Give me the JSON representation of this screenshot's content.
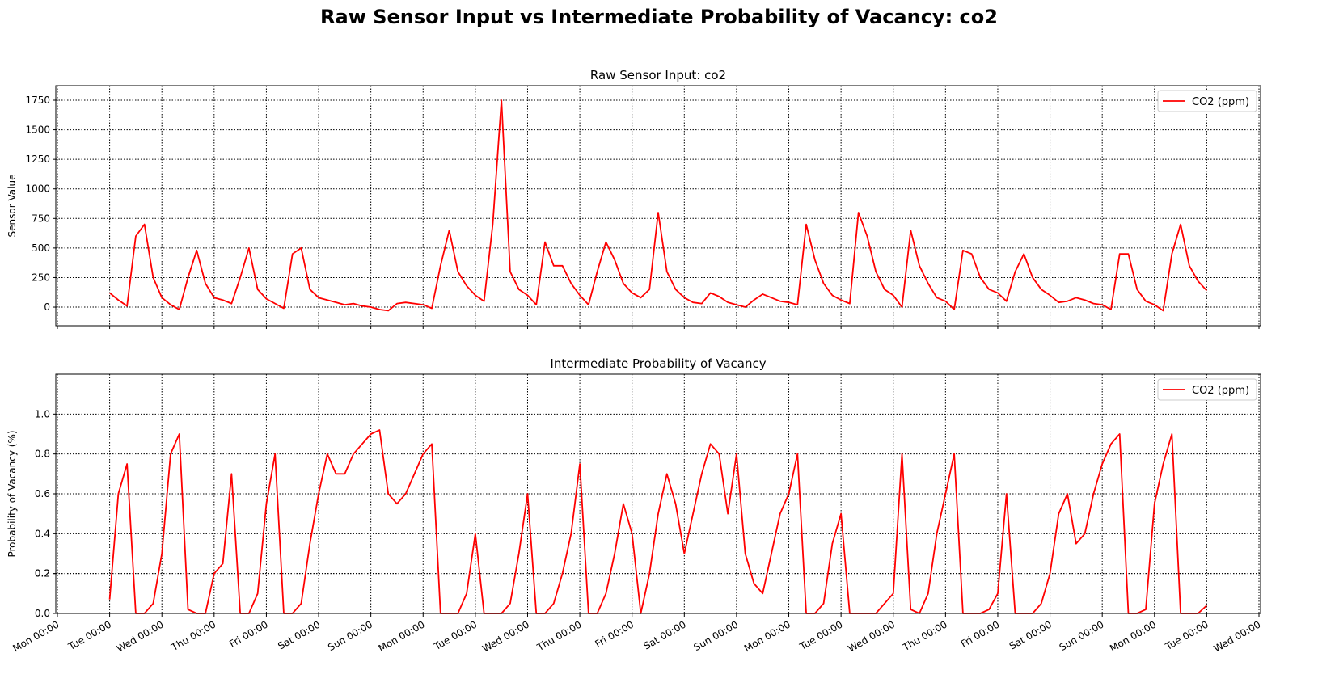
{
  "title": "Raw Sensor Input vs Intermediate Probability of Vacancy: co2",
  "chart_data": [
    {
      "type": "line",
      "title": "Raw Sensor Input: co2",
      "y_label": "Sensor Value",
      "x": [
        24,
        28,
        32,
        36,
        40,
        44,
        48,
        52,
        56,
        60,
        64,
        68,
        72,
        76,
        80,
        84,
        88,
        92,
        96,
        100,
        104,
        108,
        112,
        116,
        120,
        124,
        128,
        132,
        136,
        140,
        144,
        148,
        152,
        156,
        160,
        164,
        168,
        172,
        176,
        180,
        184,
        188,
        192,
        196,
        200,
        204,
        208,
        212,
        216,
        220,
        224,
        228,
        232,
        236,
        240,
        244,
        248,
        252,
        256,
        260,
        264,
        268,
        272,
        276,
        280,
        284,
        288,
        292,
        296,
        300,
        304,
        308,
        312,
        316,
        320,
        324,
        328,
        332,
        336,
        340,
        344,
        348,
        352,
        356,
        360,
        364,
        368,
        372,
        376,
        380,
        384,
        388,
        392,
        396,
        400,
        404,
        408,
        412,
        416,
        420,
        424,
        428,
        432,
        436,
        440,
        444,
        448,
        452,
        456,
        460,
        464,
        468,
        472,
        476,
        480,
        484,
        488,
        492,
        496,
        500,
        504,
        508,
        512,
        516,
        520,
        524,
        528
      ],
      "series": [
        {
          "name": "CO2 (ppm)",
          "color": "#ff0000",
          "values": [
            120,
            60,
            10,
            600,
            700,
            250,
            80,
            20,
            -20,
            250,
            480,
            200,
            80,
            60,
            30,
            250,
            500,
            150,
            70,
            30,
            -10,
            450,
            500,
            150,
            80,
            60,
            40,
            20,
            30,
            10,
            0,
            -20,
            -30,
            30,
            40,
            30,
            20,
            -10,
            350,
            650,
            300,
            180,
            100,
            50,
            700,
            1750,
            300,
            150,
            100,
            20,
            550,
            350,
            350,
            200,
            100,
            20,
            300,
            550,
            400,
            200,
            120,
            80,
            150,
            800,
            300,
            150,
            80,
            40,
            30,
            120,
            90,
            40,
            20,
            0,
            60,
            110,
            80,
            50,
            40,
            20,
            700,
            400,
            200,
            100,
            60,
            30,
            800,
            600,
            300,
            150,
            100,
            0,
            650,
            350,
            200,
            80,
            50,
            -20,
            480,
            450,
            250,
            150,
            120,
            50,
            300,
            450,
            250,
            150,
            100,
            40,
            50,
            80,
            60,
            30,
            20,
            -20,
            450,
            450,
            150,
            50,
            20,
            -30,
            450,
            700,
            350,
            220,
            140
          ]
        }
      ],
      "xlim": [
        -0.74,
        552.74
      ],
      "xticks": [
        0,
        24,
        48,
        72,
        96,
        120,
        144,
        168,
        192,
        216,
        240,
        264,
        288,
        312,
        336,
        360,
        384,
        408,
        432,
        456,
        480,
        504,
        528,
        552
      ],
      "ylim": [
        -157,
        1873
      ],
      "yticks": [
        0,
        250,
        500,
        750,
        1000,
        1250,
        1500,
        1750
      ],
      "grid": true,
      "legend": "upper right"
    },
    {
      "type": "line",
      "title": "Intermediate Probability of Vacancy",
      "y_label": "Probability of Vacancy (%)",
      "x": [
        24,
        28,
        32,
        36,
        40,
        44,
        48,
        52,
        56,
        60,
        64,
        68,
        72,
        76,
        80,
        84,
        88,
        92,
        96,
        100,
        104,
        108,
        112,
        116,
        120,
        124,
        128,
        132,
        136,
        140,
        144,
        148,
        152,
        156,
        160,
        164,
        168,
        172,
        176,
        180,
        184,
        188,
        192,
        196,
        200,
        204,
        208,
        212,
        216,
        220,
        224,
        228,
        232,
        236,
        240,
        244,
        248,
        252,
        256,
        260,
        264,
        268,
        272,
        276,
        280,
        284,
        288,
        292,
        296,
        300,
        304,
        308,
        312,
        316,
        320,
        324,
        328,
        332,
        336,
        340,
        344,
        348,
        352,
        356,
        360,
        364,
        368,
        372,
        376,
        380,
        384,
        388,
        392,
        396,
        400,
        404,
        408,
        412,
        416,
        420,
        424,
        428,
        432,
        436,
        440,
        444,
        448,
        452,
        456,
        460,
        464,
        468,
        472,
        476,
        480,
        484,
        488,
        492,
        496,
        500,
        504,
        508,
        512,
        516,
        520,
        524,
        528
      ],
      "series": [
        {
          "name": "CO2 (ppm)",
          "color": "#ff0000",
          "values": [
            0.07,
            0.6,
            0.75,
            0,
            0,
            0.05,
            0.3,
            0.8,
            0.9,
            0.02,
            0,
            0,
            0.2,
            0.25,
            0.7,
            0,
            0,
            0.1,
            0.55,
            0.8,
            0,
            0,
            0.05,
            0.35,
            0.6,
            0.8,
            0.7,
            0.7,
            0.8,
            0.85,
            0.9,
            0.92,
            0.6,
            0.55,
            0.6,
            0.7,
            0.8,
            0.85,
            0,
            0,
            0,
            0.1,
            0.4,
            0,
            0,
            0,
            0.05,
            0.3,
            0.6,
            0,
            0,
            0.05,
            0.2,
            0.4,
            0.75,
            0,
            0,
            0.1,
            0.3,
            0.55,
            0.4,
            0,
            0.2,
            0.5,
            0.7,
            0.55,
            0.3,
            0.5,
            0.7,
            0.85,
            0.8,
            0.5,
            0.8,
            0.3,
            0.15,
            0.1,
            0.3,
            0.5,
            0.6,
            0.8,
            0,
            0,
            0.05,
            0.35,
            0.5,
            0,
            0,
            0,
            0,
            0.05,
            0.1,
            0.8,
            0.02,
            0,
            0.1,
            0.4,
            0.6,
            0.8,
            0,
            0,
            0,
            0.02,
            0.1,
            0.6,
            0,
            0,
            0,
            0.05,
            0.2,
            0.5,
            0.6,
            0.35,
            0.4,
            0.6,
            0.75,
            0.85,
            0.9,
            0,
            0,
            0.02,
            0.55,
            0.75,
            0.9,
            0,
            0,
            0,
            0.04
          ]
        }
      ],
      "xlim": [
        -0.74,
        552.74
      ],
      "xticks": [
        {
          "value": 0,
          "label": "Mon 00:00"
        },
        {
          "value": 24,
          "label": "Tue 00:00"
        },
        {
          "value": 48,
          "label": "Wed 00:00"
        },
        {
          "value": 72,
          "label": "Thu 00:00"
        },
        {
          "value": 96,
          "label": "Fri 00:00"
        },
        {
          "value": 120,
          "label": "Sat 00:00"
        },
        {
          "value": 144,
          "label": "Sun 00:00"
        },
        {
          "value": 168,
          "label": "Mon 00:00"
        },
        {
          "value": 192,
          "label": "Tue 00:00"
        },
        {
          "value": 216,
          "label": "Wed 00:00"
        },
        {
          "value": 240,
          "label": "Thu 00:00"
        },
        {
          "value": 264,
          "label": "Fri 00:00"
        },
        {
          "value": 288,
          "label": "Sat 00:00"
        },
        {
          "value": 312,
          "label": "Sun 00:00"
        },
        {
          "value": 336,
          "label": "Mon 00:00"
        },
        {
          "value": 360,
          "label": "Tue 00:00"
        },
        {
          "value": 384,
          "label": "Wed 00:00"
        },
        {
          "value": 408,
          "label": "Thu 00:00"
        },
        {
          "value": 432,
          "label": "Fri 00:00"
        },
        {
          "value": 456,
          "label": "Sat 00:00"
        },
        {
          "value": 480,
          "label": "Sun 00:00"
        },
        {
          "value": 504,
          "label": "Mon 00:00"
        },
        {
          "value": 528,
          "label": "Tue 00:00"
        },
        {
          "value": 552,
          "label": "Wed 00:00"
        }
      ],
      "ylim": [
        0,
        1.2
      ],
      "yticks": [
        {
          "value": 0,
          "label": "0.0"
        },
        0.2,
        0.4,
        0.6,
        0.8,
        {
          "value": 1,
          "label": "1.0"
        },
        0.2
      ],
      "grid": true,
      "legend": "upper right"
    }
  ]
}
